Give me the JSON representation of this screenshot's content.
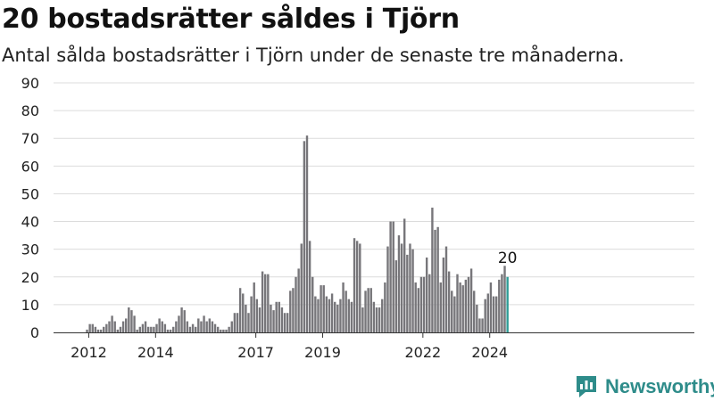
{
  "header": {
    "title": "20 bostadsrätter såldes i Tjörn",
    "subtitle": "Antal sålda bostadsrätter i Tjörn under de senaste tre månaderna."
  },
  "brand": {
    "name": "Newsworthy",
    "color": "#2e8c8a"
  },
  "chart_data": {
    "type": "bar",
    "start_year": 2011,
    "start_month": 1,
    "ylim": [
      0,
      90
    ],
    "yticks": [
      0,
      10,
      20,
      30,
      40,
      50,
      60,
      70,
      80,
      90
    ],
    "xtick_labels": [
      {
        "label": "2012",
        "year": 2012
      },
      {
        "label": "2014",
        "year": 2014
      },
      {
        "label": "2017",
        "year": 2017
      },
      {
        "label": "2019",
        "year": 2019
      },
      {
        "label": "2022",
        "year": 2022
      },
      {
        "label": "2024",
        "year": 2024
      }
    ],
    "bar_color": "#77767a",
    "highlight_color": "#2e9c96",
    "highlight_label": "20",
    "values": [
      0,
      0,
      0,
      0,
      0,
      0,
      0,
      0,
      0,
      0,
      0,
      1,
      3,
      3,
      2,
      1,
      1,
      2,
      3,
      4,
      6,
      4,
      1,
      2,
      4,
      5,
      9,
      8,
      6,
      1,
      2,
      3,
      4,
      2,
      2,
      2,
      3,
      5,
      4,
      3,
      1,
      1,
      2,
      4,
      6,
      9,
      8,
      4,
      2,
      3,
      2,
      5,
      4,
      6,
      4,
      5,
      4,
      3,
      2,
      1,
      1,
      1,
      2,
      4,
      7,
      7,
      16,
      14,
      10,
      7,
      13,
      18,
      12,
      9,
      22,
      21,
      21,
      10,
      8,
      11,
      11,
      9,
      7,
      7,
      15,
      16,
      20,
      23,
      32,
      69,
      71,
      33,
      20,
      13,
      12,
      17,
      17,
      13,
      12,
      14,
      11,
      10,
      12,
      18,
      15,
      12,
      11,
      34,
      33,
      32,
      9,
      15,
      16,
      16,
      11,
      9,
      9,
      12,
      18,
      31,
      40,
      40,
      26,
      35,
      32,
      41,
      28,
      32,
      30,
      18,
      16,
      20,
      20,
      27,
      21,
      45,
      37,
      38,
      18,
      27,
      31,
      22,
      15,
      13,
      21,
      18,
      17,
      19,
      20,
      23,
      15,
      10,
      5,
      5,
      12,
      14,
      18,
      13,
      13,
      19,
      21,
      24,
      20
    ]
  }
}
